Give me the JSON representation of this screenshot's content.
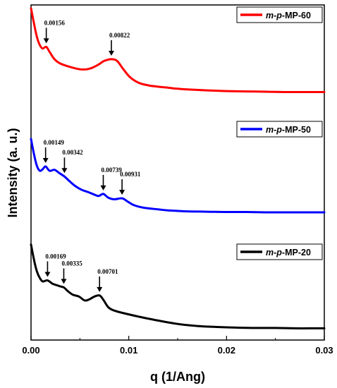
{
  "chart_data": {
    "type": "line",
    "xlabel": "q (1/Ang)",
    "ylabel": "Intensity (a. u.)",
    "xlim": [
      0,
      0.03
    ],
    "x_ticks": [
      0.0,
      0.01,
      0.02,
      0.03
    ],
    "x_tick_labels": [
      "0.00",
      "0.01",
      "0.02",
      "0.03"
    ],
    "y_ticks_shown": false,
    "ylim": [
      0,
      10
    ],
    "legend_placement": "top-right of each curve",
    "series": [
      {
        "name": "m-p-MP-60",
        "legend_italic": "m-p",
        "legend_rest": "-MP-60",
        "color": "#ff0000",
        "x": [
          0.0,
          0.0003,
          0.0006,
          0.0009,
          0.0012,
          0.00156,
          0.0019,
          0.0024,
          0.003,
          0.004,
          0.005,
          0.0057,
          0.0063,
          0.0069,
          0.0075,
          0.00822,
          0.0088,
          0.0094,
          0.0101,
          0.011,
          0.012,
          0.013,
          0.014,
          0.015,
          0.016,
          0.018,
          0.02,
          0.022,
          0.024,
          0.026,
          0.028,
          0.03
        ],
        "y": [
          9.9,
          9.45,
          9.05,
          8.8,
          8.7,
          8.75,
          8.6,
          8.38,
          8.25,
          8.15,
          8.08,
          8.08,
          8.13,
          8.22,
          8.33,
          8.38,
          8.33,
          8.1,
          7.85,
          7.68,
          7.6,
          7.56,
          7.53,
          7.5,
          7.48,
          7.45,
          7.43,
          7.42,
          7.41,
          7.4,
          7.4,
          7.4
        ]
      },
      {
        "name": "m-p-MP-50",
        "legend_italic": "m-p",
        "legend_rest": "-MP-50",
        "color": "#0000ff",
        "x": [
          0.0,
          0.0003,
          0.0006,
          0.0009,
          0.0012,
          0.00149,
          0.0019,
          0.0024,
          0.0029,
          0.00342,
          0.0039,
          0.0045,
          0.0052,
          0.0058,
          0.0064,
          0.0069,
          0.00739,
          0.0079,
          0.0085,
          0.00931,
          0.0098,
          0.0105,
          0.0115,
          0.013,
          0.014,
          0.016,
          0.018,
          0.02,
          0.022,
          0.024,
          0.026,
          0.028,
          0.03
        ],
        "y": [
          6.0,
          5.55,
          5.2,
          5.05,
          5.1,
          5.18,
          5.05,
          5.08,
          4.98,
          4.88,
          4.75,
          4.6,
          4.48,
          4.42,
          4.35,
          4.3,
          4.36,
          4.25,
          4.2,
          4.23,
          4.15,
          4.03,
          3.95,
          3.9,
          3.87,
          3.84,
          3.83,
          3.82,
          3.82,
          3.81,
          3.81,
          3.81,
          3.81
        ]
      },
      {
        "name": "m-p-MP-20",
        "legend_italic": "m-p",
        "legend_rest": "-MP-20",
        "color": "#000000",
        "x": [
          0.0,
          0.0003,
          0.0006,
          0.0009,
          0.0012,
          0.00169,
          0.0022,
          0.0027,
          0.003,
          0.00335,
          0.0038,
          0.0043,
          0.0049,
          0.0055,
          0.006,
          0.0065,
          0.00701,
          0.0074,
          0.0079,
          0.0085,
          0.0095,
          0.011,
          0.013,
          0.015,
          0.017,
          0.019,
          0.021,
          0.023,
          0.025,
          0.027,
          0.029,
          0.03
        ],
        "y": [
          2.85,
          2.4,
          2.05,
          1.85,
          1.75,
          1.78,
          1.68,
          1.63,
          1.6,
          1.57,
          1.45,
          1.35,
          1.3,
          1.18,
          1.22,
          1.3,
          1.33,
          1.2,
          0.98,
          0.88,
          0.8,
          0.7,
          0.58,
          0.48,
          0.42,
          0.39,
          0.37,
          0.36,
          0.36,
          0.35,
          0.35,
          0.35
        ]
      }
    ],
    "annotations": [
      {
        "text": "0.00156",
        "series": 0,
        "x": 0.00156,
        "y": 8.75
      },
      {
        "text": "0.00822",
        "series": 0,
        "x": 0.00822,
        "y": 8.38
      },
      {
        "text": "0.00149",
        "series": 1,
        "x": 0.00149,
        "y": 5.18
      },
      {
        "text": "0.00342",
        "series": 1,
        "x": 0.00342,
        "y": 4.88
      },
      {
        "text": "0.00739",
        "series": 1,
        "x": 0.00739,
        "y": 4.36
      },
      {
        "text": "0.00931",
        "series": 1,
        "x": 0.00931,
        "y": 4.23
      },
      {
        "text": "0.00169",
        "series": 2,
        "x": 0.00169,
        "y": 1.78
      },
      {
        "text": "0.00335",
        "series": 2,
        "x": 0.00335,
        "y": 1.57
      },
      {
        "text": "0.00701",
        "series": 2,
        "x": 0.00701,
        "y": 1.33
      }
    ]
  }
}
